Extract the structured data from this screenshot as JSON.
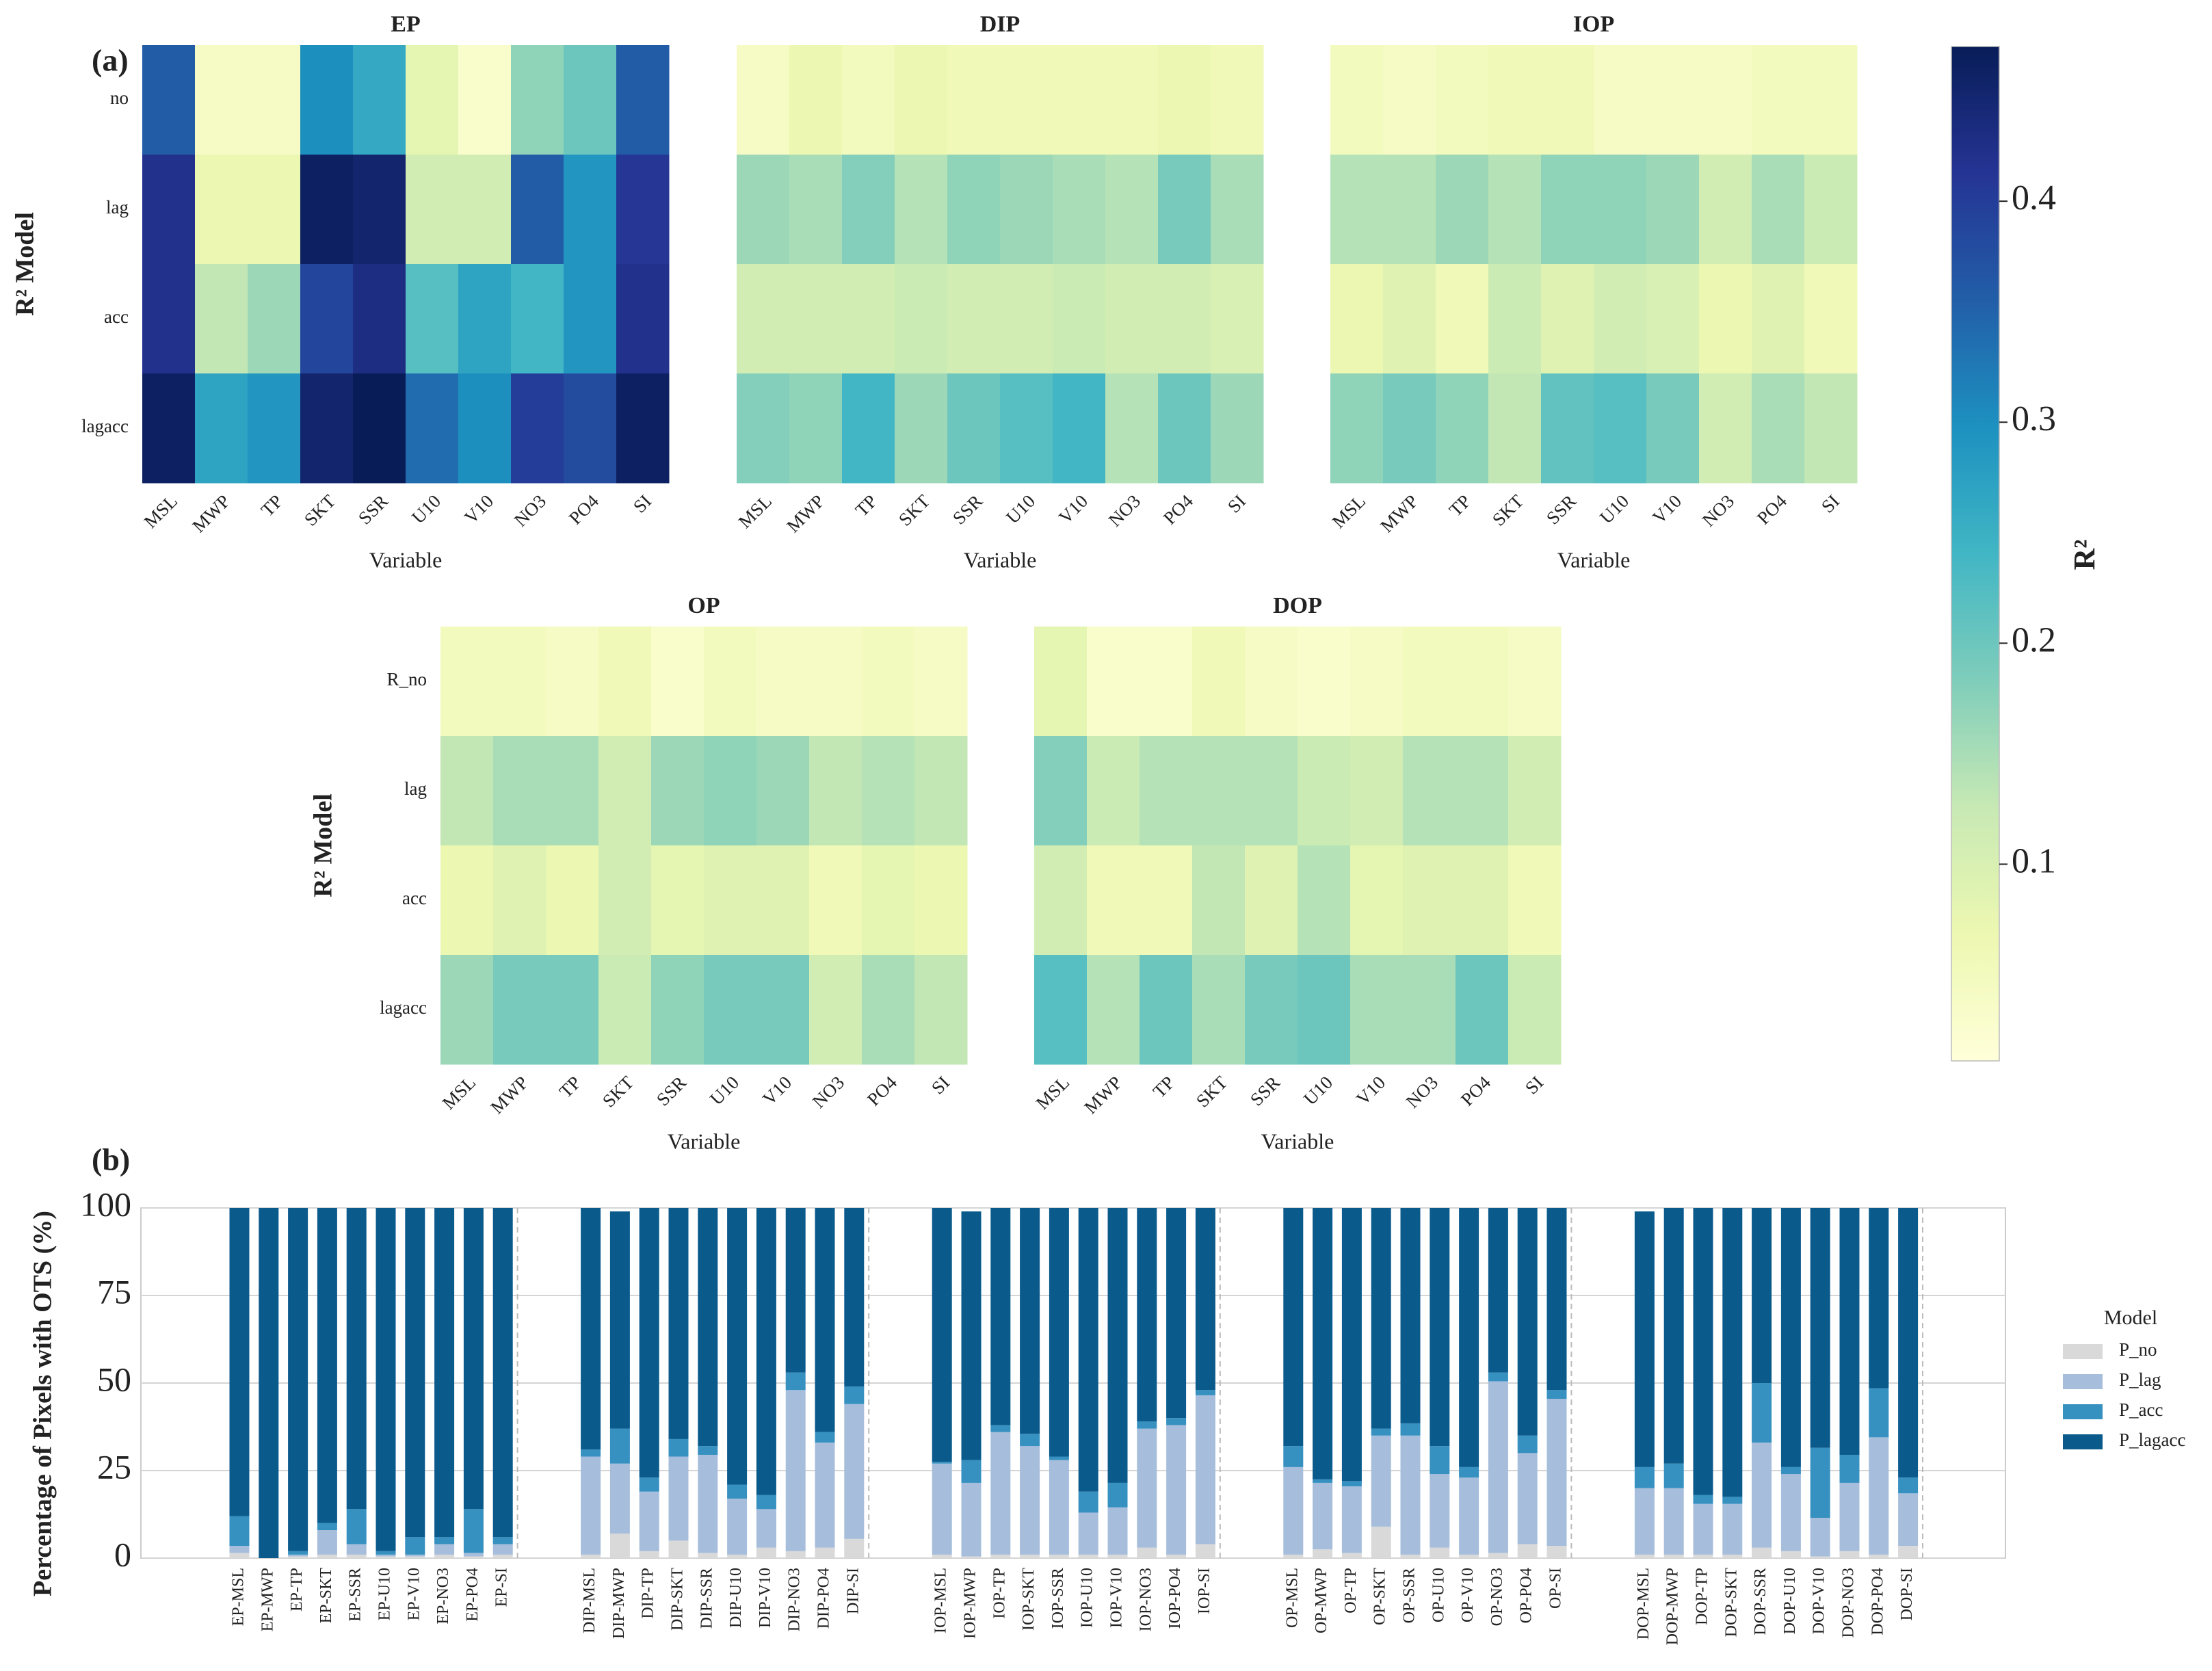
{
  "panels": [
    "(a)",
    "(b)"
  ],
  "chart_data": [
    {
      "type": "heatmap",
      "title": "EP",
      "xlabel": "Variable",
      "ylabel": "R² Model",
      "rows": [
        "no",
        "lag",
        "acc",
        "lagacc"
      ],
      "columns": [
        "MSL",
        "MWP",
        "TP",
        "SKT",
        "SSR",
        "U10",
        "V10",
        "NO3",
        "PO4",
        "SI"
      ],
      "values": [
        [
          0.36,
          0.04,
          0.04,
          0.3,
          0.26,
          0.08,
          0.03,
          0.17,
          0.2,
          0.36
        ],
        [
          0.42,
          0.07,
          0.07,
          0.46,
          0.45,
          0.11,
          0.11,
          0.36,
          0.29,
          0.41
        ],
        [
          0.42,
          0.13,
          0.16,
          0.39,
          0.43,
          0.22,
          0.27,
          0.24,
          0.29,
          0.42
        ],
        [
          0.46,
          0.27,
          0.29,
          0.45,
          0.47,
          0.34,
          0.3,
          0.4,
          0.38,
          0.46
        ]
      ]
    },
    {
      "type": "heatmap",
      "title": "DIP",
      "xlabel": "Variable",
      "columns": [
        "MSL",
        "MWP",
        "TP",
        "SKT",
        "SSR",
        "U10",
        "V10",
        "NO3",
        "PO4",
        "SI"
      ],
      "values": [
        [
          0.04,
          0.07,
          0.05,
          0.07,
          0.06,
          0.06,
          0.06,
          0.06,
          0.07,
          0.06
        ],
        [
          0.16,
          0.15,
          0.18,
          0.14,
          0.17,
          0.16,
          0.15,
          0.14,
          0.19,
          0.15
        ],
        [
          0.11,
          0.11,
          0.11,
          0.12,
          0.11,
          0.11,
          0.12,
          0.11,
          0.11,
          0.1
        ],
        [
          0.18,
          0.17,
          0.24,
          0.16,
          0.2,
          0.22,
          0.24,
          0.14,
          0.2,
          0.16
        ]
      ]
    },
    {
      "type": "heatmap",
      "title": "IOP",
      "xlabel": "Variable",
      "columns": [
        "MSL",
        "MWP",
        "TP",
        "SKT",
        "SSR",
        "U10",
        "V10",
        "NO3",
        "PO4",
        "SI"
      ],
      "values": [
        [
          0.05,
          0.04,
          0.05,
          0.06,
          0.06,
          0.04,
          0.04,
          0.04,
          0.05,
          0.05
        ],
        [
          0.14,
          0.14,
          0.16,
          0.14,
          0.17,
          0.17,
          0.16,
          0.11,
          0.15,
          0.12
        ],
        [
          0.07,
          0.09,
          0.06,
          0.12,
          0.09,
          0.11,
          0.1,
          0.07,
          0.09,
          0.06
        ],
        [
          0.17,
          0.19,
          0.17,
          0.13,
          0.21,
          0.22,
          0.19,
          0.11,
          0.15,
          0.13
        ]
      ]
    },
    {
      "type": "heatmap",
      "title": "OP",
      "xlabel": "Variable",
      "ylabel": "R² Model",
      "rows": [
        "R_no",
        "lag",
        "acc",
        "lagacc"
      ],
      "columns": [
        "MSL",
        "MWP",
        "TP",
        "SKT",
        "SSR",
        "U10",
        "V10",
        "NO3",
        "PO4",
        "SI"
      ],
      "values": [
        [
          0.05,
          0.05,
          0.04,
          0.06,
          0.03,
          0.05,
          0.04,
          0.04,
          0.05,
          0.04
        ],
        [
          0.13,
          0.15,
          0.15,
          0.11,
          0.16,
          0.17,
          0.16,
          0.13,
          0.14,
          0.13
        ],
        [
          0.07,
          0.09,
          0.07,
          0.11,
          0.08,
          0.09,
          0.09,
          0.06,
          0.08,
          0.07
        ],
        [
          0.16,
          0.19,
          0.19,
          0.12,
          0.17,
          0.19,
          0.19,
          0.11,
          0.15,
          0.13
        ]
      ]
    },
    {
      "type": "heatmap",
      "title": "DOP",
      "xlabel": "Variable",
      "columns": [
        "MSL",
        "MWP",
        "TP",
        "SKT",
        "SSR",
        "U10",
        "V10",
        "NO3",
        "PO4",
        "SI"
      ],
      "values": [
        [
          0.08,
          0.03,
          0.03,
          0.06,
          0.04,
          0.03,
          0.04,
          0.05,
          0.05,
          0.04
        ],
        [
          0.18,
          0.12,
          0.14,
          0.14,
          0.14,
          0.12,
          0.11,
          0.14,
          0.14,
          0.11
        ],
        [
          0.11,
          0.06,
          0.06,
          0.13,
          0.09,
          0.14,
          0.08,
          0.09,
          0.09,
          0.06
        ],
        [
          0.22,
          0.14,
          0.2,
          0.15,
          0.19,
          0.2,
          0.15,
          0.15,
          0.2,
          0.12
        ]
      ]
    },
    {
      "type": "colorbar",
      "label": "R²",
      "lim": [
        0.011,
        0.47
      ],
      "ticks": [
        0.1,
        0.2,
        0.3,
        0.4
      ],
      "cmap": [
        "#ffffd9",
        "#edf8b1",
        "#c7e9b4",
        "#7fcdbb",
        "#41b6c4",
        "#1d91c0",
        "#225ea8",
        "#253494",
        "#081d58"
      ]
    },
    {
      "type": "stacked_bar",
      "ylabel": "Percentage of Pixels with OTS (%)",
      "ylim": [
        0,
        100
      ],
      "yticks": [
        0,
        25,
        50,
        75,
        100
      ],
      "grid": true,
      "legend_title": "Model",
      "legend": "right",
      "categories": [
        "EP-MSL",
        "EP-MWP",
        "EP-TP",
        "EP-SKT",
        "EP-SSR",
        "EP-U10",
        "EP-V10",
        "EP-NO3",
        "EP-PO4",
        "EP-SI",
        "DIP-MSL",
        "DIP-MWP",
        "DIP-TP",
        "DIP-SKT",
        "DIP-SSR",
        "DIP-U10",
        "DIP-V10",
        "DIP-NO3",
        "DIP-PO4",
        "DIP-SI",
        "IOP-MSL",
        "IOP-MWP",
        "IOP-TP",
        "IOP-SKT",
        "IOP-SSR",
        "IOP-U10",
        "IOP-V10",
        "IOP-NO3",
        "IOP-PO4",
        "IOP-SI",
        "OP-MSL",
        "OP-MWP",
        "OP-TP",
        "OP-SKT",
        "OP-SSR",
        "OP-U10",
        "OP-V10",
        "OP-NO3",
        "OP-PO4",
        "OP-SI",
        "DOP-MSL",
        "DOP-MWP",
        "DOP-TP",
        "DOP-SKT",
        "DOP-SSR",
        "DOP-U10",
        "DOP-V10",
        "DOP-NO3",
        "DOP-PO4",
        "DOP-SI"
      ],
      "series": [
        {
          "name": "P_no",
          "color": "#d9d9d9",
          "values": [
            1.5,
            0,
            0.5,
            1,
            1,
            0.5,
            0.5,
            1,
            0.5,
            1,
            1,
            7,
            2,
            5,
            1.5,
            1,
            3,
            2,
            3,
            5.5,
            1,
            0.5,
            1,
            1,
            1,
            1,
            1,
            3,
            1,
            4,
            1,
            2.5,
            1.5,
            9,
            1,
            3,
            1,
            1.5,
            4,
            3.5,
            1,
            1,
            1,
            1,
            3,
            2,
            0.5,
            2,
            1,
            3.5
          ]
        },
        {
          "name": "P_lag",
          "color": "#a6bddb",
          "values": [
            2,
            0,
            0.5,
            7,
            3,
            0.5,
            0.5,
            3,
            1,
            3,
            28,
            20,
            17,
            24,
            28,
            16,
            11,
            46,
            30,
            38.5,
            26,
            21,
            35,
            31,
            27,
            12,
            13.5,
            34,
            37,
            42.5,
            25,
            19,
            19,
            26,
            34,
            21,
            22,
            49,
            26,
            42,
            19,
            19,
            14.5,
            14.5,
            30,
            22,
            11,
            19.5,
            33.5,
            15
          ]
        },
        {
          "name": "P_acc",
          "color": "#3690c0",
          "values": [
            8.5,
            0,
            1,
            2,
            10,
            1,
            5,
            2,
            12.5,
            2,
            2,
            10,
            4,
            5,
            2.5,
            4,
            4,
            5,
            3,
            5,
            0.5,
            6.5,
            2,
            3.5,
            1,
            6,
            7,
            2,
            2,
            1.5,
            6,
            1,
            1.5,
            2,
            3.5,
            8,
            3,
            2.5,
            5,
            2.5,
            6,
            7,
            2.5,
            2,
            17,
            2,
            20,
            8,
            14,
            4.5
          ]
        },
        {
          "name": "P_lagacc",
          "color": "#0a5a8c",
          "values": [
            88,
            100,
            98,
            90,
            86,
            98,
            94,
            94,
            86,
            94,
            69,
            62,
            77,
            66,
            68,
            79,
            82,
            47,
            64,
            51,
            72.5,
            71,
            62,
            64.5,
            71,
            81,
            78.5,
            61,
            60,
            52,
            68,
            77.5,
            78,
            63,
            61.5,
            68,
            74,
            47,
            65,
            52,
            73,
            73,
            82,
            82.5,
            50,
            74,
            68.5,
            70.5,
            51.5,
            77
          ]
        }
      ]
    }
  ]
}
